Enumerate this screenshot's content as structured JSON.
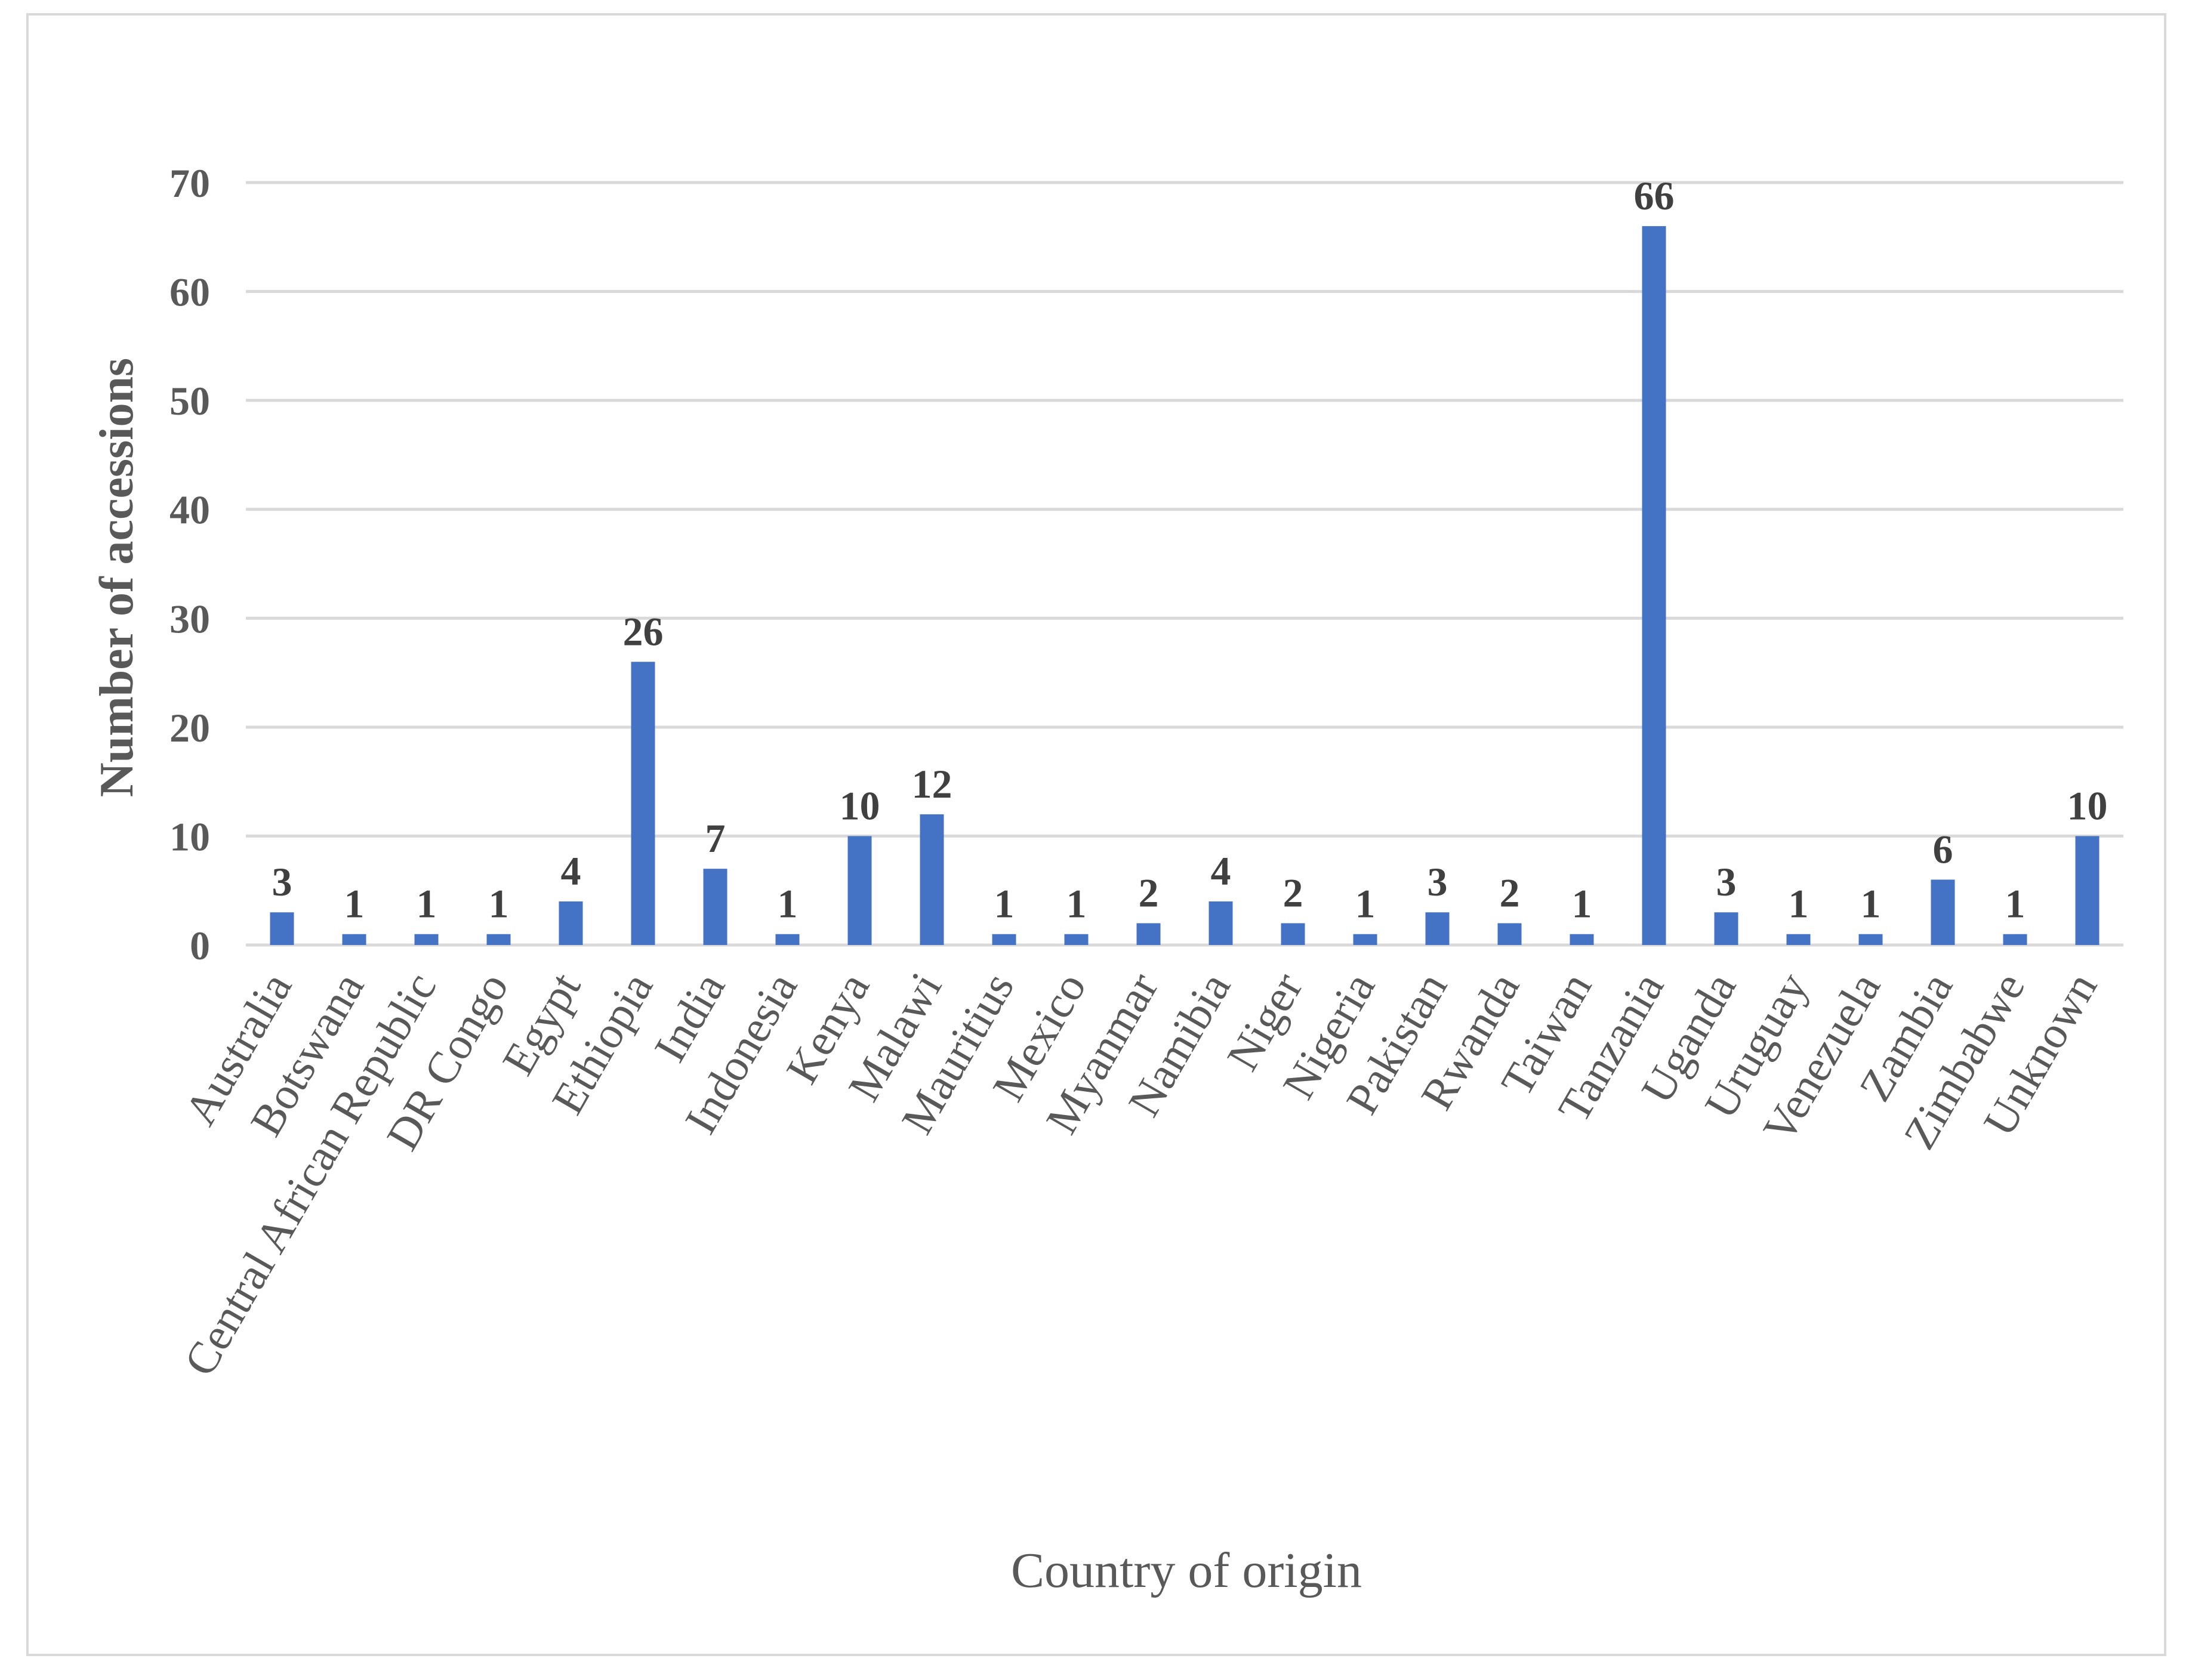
{
  "chart_data": {
    "type": "bar",
    "title": "",
    "xlabel": "Country of origin",
    "ylabel": "Number of accessions",
    "ylim": [
      0,
      70
    ],
    "yticks": [
      0,
      10,
      20,
      30,
      40,
      50,
      60,
      70
    ],
    "grid": true,
    "legend": "none",
    "bar_color": "#4472c4",
    "grid_color": "#d9d9d9",
    "categories": [
      "Australia",
      "Botswana",
      "Central African Republic",
      "DR Congo",
      "Egypt",
      "Ethiopia",
      "India",
      "Indonesia",
      "Kenya",
      "Malawi",
      "Mauritius",
      "Mexico",
      "Myanmar",
      "Namibia",
      "Niger",
      "Nigeria",
      "Pakistan",
      "Rwanda",
      "Taiwan",
      "Tanzania",
      "Uganda",
      "Uruguay",
      "Venezuela",
      "Zambia",
      "Zimbabwe",
      "Unknown"
    ],
    "values": [
      3,
      1,
      1,
      1,
      4,
      26,
      7,
      1,
      10,
      12,
      1,
      1,
      2,
      4,
      2,
      1,
      3,
      2,
      1,
      66,
      3,
      1,
      1,
      6,
      1,
      10
    ]
  }
}
